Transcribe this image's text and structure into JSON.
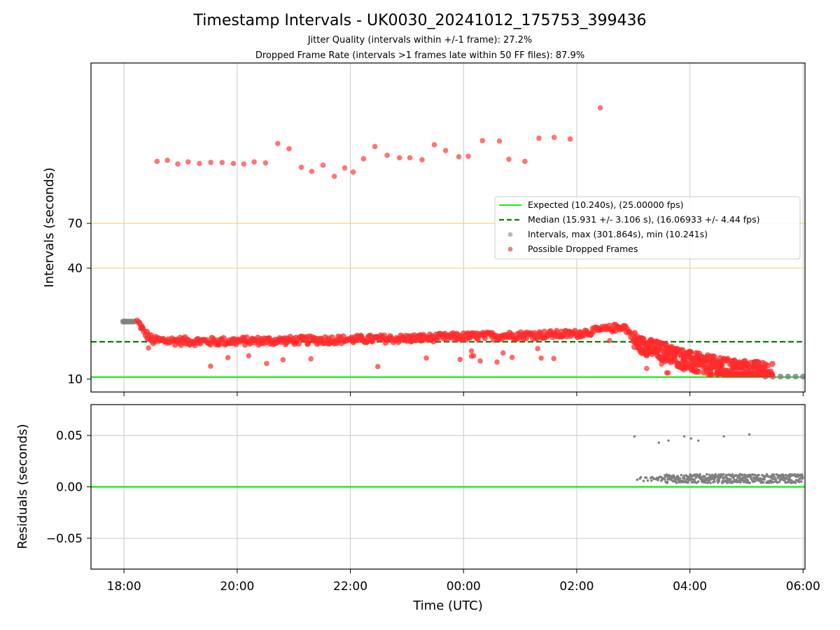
{
  "chart_data": [
    {
      "panel": "intervals",
      "type": "scatter",
      "title": "Timestamp Intervals - UK0030_20241012_175753_399436",
      "subtitle_lines": [
        "Jitter Quality (intervals within +/-1 frame): 27.2%",
        "Dropped Frame Rate (intervals >1 frames late within 50 FF files): 87.9%"
      ],
      "xlabel": "",
      "ylabel": "Intervals (seconds)",
      "y_scale": "log",
      "xlim": [
        "17:25",
        "06:02"
      ],
      "ylim": [
        8.5,
        520
      ],
      "yticks": [
        10,
        40,
        70
      ],
      "ytick_labels": [
        "10",
        "40",
        "70"
      ],
      "grid": true,
      "x_grid_times": [
        "18:00",
        "20:00",
        "22:00",
        "00:00",
        "02:00",
        "04:00",
        "06:00"
      ],
      "threshold_lines": {
        "values": [
          40,
          70
        ],
        "color": "#ffd27a"
      },
      "legend_position": "center-right",
      "legend": [
        {
          "label": "Expected (10.240s), (25.00000 fps)",
          "style": "solid-line",
          "color": "#22ee22"
        },
        {
          "label": "Median (15.931 +/- 3.106 s), (16.06933 +/- 4.44 fps)",
          "style": "dashed-line",
          "color": "#0a7d0a"
        },
        {
          "label": "Intervals, max (301.864s), min (10.241s)",
          "style": "marker",
          "color": "#a0a0a0"
        },
        {
          "label": "Possible Dropped Frames",
          "style": "marker",
          "color": "#ff4a4a"
        }
      ],
      "series": [
        {
          "name": "Expected (10.240s), (25.00000 fps)",
          "kind": "hline",
          "value": 10.24,
          "color": "#22ee22"
        },
        {
          "name": "Median (15.931 +/- 3.106 s), (16.06933 +/- 4.44 fps)",
          "kind": "hline",
          "value": 15.931,
          "color": "#0a7d0a"
        },
        {
          "name": "Intervals, max (301.864s), min (10.241s)",
          "kind": "scatter",
          "color": "#808080",
          "points": [
            [
              "17:59",
              20.5
            ],
            [
              "18:00",
              20.5
            ],
            [
              "18:01",
              20.5
            ],
            [
              "18:03",
              20.5
            ],
            [
              "18:05",
              20.5
            ],
            [
              "18:07",
              20.5
            ],
            [
              "18:09",
              20.5
            ],
            [
              "18:11",
              20.5
            ],
            [
              "05:20",
              10.3
            ],
            [
              "05:28",
              10.3
            ],
            [
              "05:36",
              10.3
            ],
            [
              "05:44",
              10.3
            ],
            [
              "05:52",
              10.3
            ],
            [
              "06:00",
              10.3
            ]
          ]
        },
        {
          "name": "Possible Dropped Frames",
          "kind": "scatter",
          "color": "#ff2b2b",
          "band": [
            [
              "18:14",
              20.5
            ],
            [
              "18:22",
              17.8
            ],
            [
              "18:30",
              16.2
            ],
            [
              "19:30",
              16.0
            ],
            [
              "21:00",
              16.2
            ],
            [
              "22:00",
              16.4
            ],
            [
              "23:00",
              16.6
            ],
            [
              "00:00",
              17.0
            ],
            [
              "01:00",
              17.3
            ],
            [
              "02:00",
              17.6
            ],
            [
              "02:50",
              19.3
            ],
            [
              "03:05",
              15.5
            ],
            [
              "03:30",
              14.2
            ],
            [
              "04:00",
              12.5
            ],
            [
              "04:30",
              11.5
            ],
            [
              "05:00",
              11.0
            ],
            [
              "05:27",
              10.7
            ]
          ],
          "outliers": [
            [
              "18:35",
              152
            ],
            [
              "18:46",
              154
            ],
            [
              "18:57",
              147
            ],
            [
              "19:08",
              151
            ],
            [
              "19:20",
              148
            ],
            [
              "19:32",
              150
            ],
            [
              "19:44",
              150
            ],
            [
              "19:56",
              148
            ],
            [
              "20:07",
              147
            ],
            [
              "20:18",
              151
            ],
            [
              "20:30",
              149
            ],
            [
              "20:43",
              190
            ],
            [
              "20:55",
              178
            ],
            [
              "21:08",
              141
            ],
            [
              "21:19",
              134
            ],
            [
              "21:31",
              145
            ],
            [
              "21:43",
              126
            ],
            [
              "21:54",
              140
            ],
            [
              "22:03",
              133
            ],
            [
              "22:14",
              157
            ],
            [
              "22:26",
              183
            ],
            [
              "22:39",
              164
            ],
            [
              "22:52",
              159
            ],
            [
              "23:03",
              159
            ],
            [
              "23:16",
              155
            ],
            [
              "23:29",
              187
            ],
            [
              "23:41",
              174
            ],
            [
              "23:55",
              161
            ],
            [
              "00:05",
              162
            ],
            [
              "00:20",
              197
            ],
            [
              "00:38",
              196
            ],
            [
              "00:48",
              156
            ],
            [
              "01:05",
              152
            ],
            [
              "01:20",
              203
            ],
            [
              "01:36",
              205
            ],
            [
              "01:53",
              201
            ],
            [
              "02:25",
              297
            ]
          ]
        }
      ]
    },
    {
      "panel": "residuals",
      "type": "scatter",
      "xlabel": "Time (UTC)",
      "ylabel": "Residuals (seconds)",
      "ylim": [
        -0.08,
        0.08
      ],
      "yticks": [
        -0.05,
        0.0,
        0.05
      ],
      "ytick_labels": [
        "−0.05",
        "0.00",
        "0.05"
      ],
      "xticks": [
        "18:00",
        "20:00",
        "22:00",
        "00:00",
        "02:00",
        "04:00",
        "06:00"
      ],
      "grid": true,
      "series": [
        {
          "name": "Zero residual",
          "kind": "hline",
          "value": 0.0,
          "color": "#22ee22"
        },
        {
          "name": "Residuals",
          "kind": "scatter",
          "color": "#808080",
          "outliers": [
            [
              3.02,
              0.049
            ],
            [
              3.45,
              0.043
            ],
            [
              3.62,
              0.045
            ],
            [
              3.9,
              0.049
            ],
            [
              4.02,
              0.047
            ],
            [
              4.15,
              0.045
            ],
            [
              4.6,
              0.049
            ],
            [
              5.05,
              0.051
            ]
          ],
          "band": {
            "start_hour": 3.05,
            "end_hour": 6.0,
            "center": 0.008,
            "spread": 0.006
          }
        }
      ]
    }
  ]
}
